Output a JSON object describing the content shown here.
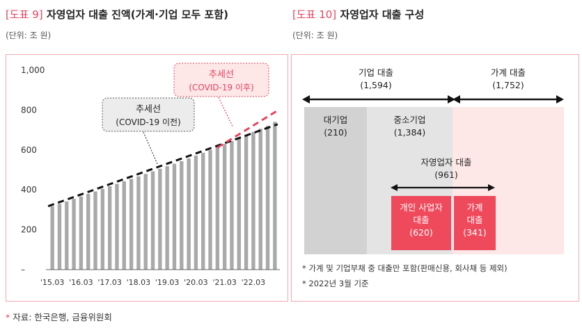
{
  "left": {
    "tag": "[도표 9]",
    "title": "자영업자 대출 진액(가계·기업 모두 포함)",
    "unit": "(단위: 조 원)"
  },
  "right": {
    "tag": "[도표 10]",
    "title": "자영업자 대출 구성",
    "unit": "(단위: 조 원)",
    "corp_loan": {
      "label": "기업 대출",
      "value": "(1,594)"
    },
    "household_loan": {
      "label": "가계 대출",
      "value": "(1,752)"
    },
    "large_corp": {
      "label": "대기업",
      "value": "(210)"
    },
    "sme": {
      "label": "중소기업",
      "value": "(1,384)"
    },
    "self_employed": {
      "label": "자영업자 대출",
      "value": "(961)"
    },
    "individual_biz": {
      "label1": "개인 사업자",
      "label2": "대출",
      "value": "(620)"
    },
    "household_part": {
      "label1": "가계",
      "label2": "대출",
      "value": "(341)"
    },
    "notes": [
      "* 가계 및 기업부채 중 대출만 포함(판매신용, 회사채 등 제외)",
      "* 2022년 3월 기준"
    ],
    "colors": {
      "gray": "#d2d2d2",
      "light_gray": "#e4e4e4",
      "pink": "#fde7e7",
      "red": "#ef4a5c"
    }
  },
  "source": {
    "star": "*",
    "text": "자료: 한국은행, 금융위원회"
  },
  "chart_data": {
    "type": "bar",
    "title": "자영업자 대출 진액(가계·기업 모두 포함)",
    "ylim": [
      0,
      1000
    ],
    "yticks": [
      "1,000",
      "800",
      "600",
      "400",
      "200",
      "–"
    ],
    "ytick_values": [
      1000,
      800,
      600,
      400,
      200,
      0
    ],
    "xtick_labels": [
      "'15.03",
      "'16.03",
      "'17.03",
      "'18.03",
      "'19.03",
      "'20.03",
      "'21.03",
      "'22.03"
    ],
    "values": [
      318,
      330,
      342,
      355,
      367,
      380,
      392,
      405,
      418,
      430,
      443,
      455,
      468,
      480,
      493,
      506,
      519,
      531,
      544,
      558,
      572,
      586,
      600,
      615,
      630,
      645,
      660,
      675,
      690,
      706,
      721,
      741
    ],
    "trend_pre": {
      "label1": "추세선",
      "label2": "(COVID-19 이전)",
      "start": 318,
      "end": 729
    },
    "trend_post": {
      "label1": "추세선",
      "label2": "(COVID-19 이후)",
      "start": 612,
      "end": 798,
      "from_index": 23
    },
    "bar_color": "#a9a9a9",
    "trend_color": "#111111",
    "post_color": "#e8425e"
  }
}
